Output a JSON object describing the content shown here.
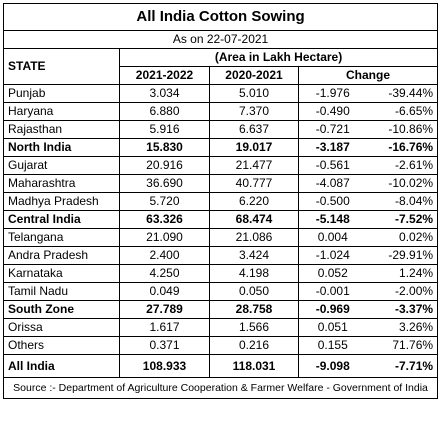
{
  "title": "All India Cotton Sowing",
  "as_on": "As on 22-07-2021",
  "headers": {
    "state": "STATE",
    "area": "(Area in Lakh Hectare)",
    "year1": "2021-2022",
    "year2": "2020-2021",
    "change": "Change"
  },
  "rows": [
    {
      "state": "Punjab",
      "y1": "3.034",
      "y2": "5.010",
      "chg": "-1.976",
      "pct": "-39.44%",
      "bold": false
    },
    {
      "state": "Haryana",
      "y1": "6.880",
      "y2": "7.370",
      "chg": "-0.490",
      "pct": "-6.65%",
      "bold": false
    },
    {
      "state": "Rajasthan",
      "y1": "5.916",
      "y2": "6.637",
      "chg": "-0.721",
      "pct": "-10.86%",
      "bold": false
    },
    {
      "state": "North India",
      "y1": "15.830",
      "y2": "19.017",
      "chg": "-3.187",
      "pct": "-16.76%",
      "bold": true
    },
    {
      "state": "Gujarat",
      "y1": "20.916",
      "y2": "21.477",
      "chg": "-0.561",
      "pct": "-2.61%",
      "bold": false
    },
    {
      "state": "Maharashtra",
      "y1": "36.690",
      "y2": "40.777",
      "chg": "-4.087",
      "pct": "-10.02%",
      "bold": false
    },
    {
      "state": "Madhya Pradesh",
      "y1": "5.720",
      "y2": "6.220",
      "chg": "-0.500",
      "pct": "-8.04%",
      "bold": false
    },
    {
      "state": "Central India",
      "y1": "63.326",
      "y2": "68.474",
      "chg": "-5.148",
      "pct": "-7.52%",
      "bold": true
    },
    {
      "state": "Telangana",
      "y1": "21.090",
      "y2": "21.086",
      "chg": "0.004",
      "pct": "0.02%",
      "bold": false
    },
    {
      "state": "Andra Pradesh",
      "y1": "2.400",
      "y2": "3.424",
      "chg": "-1.024",
      "pct": "-29.91%",
      "bold": false
    },
    {
      "state": "Karnataka",
      "y1": "4.250",
      "y2": "4.198",
      "chg": "0.052",
      "pct": "1.24%",
      "bold": false
    },
    {
      "state": "Tamil Nadu",
      "y1": "0.049",
      "y2": "0.050",
      "chg": "-0.001",
      "pct": "-2.00%",
      "bold": false
    },
    {
      "state": "South Zone",
      "y1": "27.789",
      "y2": "28.758",
      "chg": "-0.969",
      "pct": "-3.37%",
      "bold": true
    },
    {
      "state": "Orissa",
      "y1": "1.617",
      "y2": "1.566",
      "chg": "0.051",
      "pct": "3.26%",
      "bold": false
    },
    {
      "state": "Others",
      "y1": "0.371",
      "y2": "0.216",
      "chg": "0.155",
      "pct": "71.76%",
      "bold": false
    }
  ],
  "all_india": {
    "state": "All India",
    "y1": "108.933",
    "y2": "118.031",
    "chg": "-9.098",
    "pct": "-7.71%"
  },
  "source": "Source :- Department of Agriculture Cooperation & Farmer Welfare - Government of India"
}
